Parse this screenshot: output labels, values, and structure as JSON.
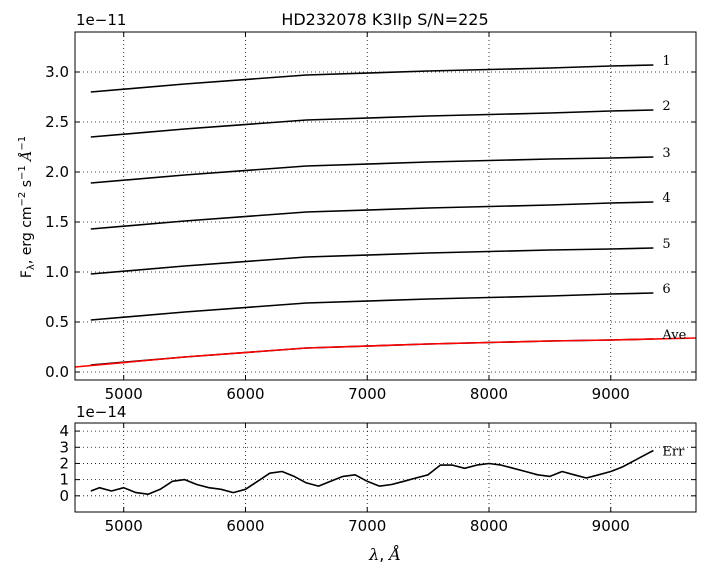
{
  "chart_data": [
    {
      "type": "line",
      "title": "HD232078  K3IIp  S/N=225",
      "ylabel_main": "F",
      "ylabel_sub": "λ",
      "ylabel_rest": ", erg cm",
      "ylabel_exp1": "−2",
      "ylabel_s": " s",
      "ylabel_exp2": "−1",
      "ylabel_unit": "Å",
      "ylabel_exp3": "−1",
      "offset_text": "1e−11",
      "xlim": [
        4600,
        9700
      ],
      "ylim": [
        -0.08,
        3.4
      ],
      "x_ticks": [
        5000,
        6000,
        7000,
        8000,
        9000
      ],
      "x_tick_labels": [
        "5000",
        "6000",
        "7000",
        "8000",
        "9000"
      ],
      "y_ticks": [
        0.0,
        0.5,
        1.0,
        1.5,
        2.0,
        2.5,
        3.0
      ],
      "y_tick_labels": [
        "0.0",
        "0.5",
        "1.0",
        "1.5",
        "2.0",
        "2.5",
        "3.0"
      ],
      "grid": true,
      "series": [
        {
          "name": "1",
          "color": "#000000",
          "x": [
            4730,
            5500,
            6500,
            7500,
            8500,
            9000,
            9350
          ],
          "y": [
            2.8,
            2.88,
            2.97,
            3.01,
            3.04,
            3.06,
            3.07
          ]
        },
        {
          "name": "2",
          "color": "#000000",
          "x": [
            4730,
            5500,
            6500,
            7500,
            8500,
            9000,
            9350
          ],
          "y": [
            2.35,
            2.43,
            2.52,
            2.56,
            2.59,
            2.61,
            2.62
          ]
        },
        {
          "name": "3",
          "color": "#000000",
          "x": [
            4730,
            5500,
            6500,
            7500,
            8500,
            9000,
            9350
          ],
          "y": [
            1.89,
            1.97,
            2.06,
            2.1,
            2.13,
            2.14,
            2.15
          ]
        },
        {
          "name": "4",
          "color": "#000000",
          "x": [
            4730,
            5500,
            6500,
            7500,
            8500,
            9000,
            9350
          ],
          "y": [
            1.43,
            1.51,
            1.6,
            1.64,
            1.67,
            1.69,
            1.7
          ]
        },
        {
          "name": "5",
          "color": "#000000",
          "x": [
            4730,
            5500,
            6500,
            7500,
            8500,
            9000,
            9350
          ],
          "y": [
            0.98,
            1.06,
            1.15,
            1.19,
            1.22,
            1.23,
            1.24
          ]
        },
        {
          "name": "6",
          "color": "#000000",
          "x": [
            4730,
            5500,
            6500,
            7500,
            8500,
            9000,
            9350
          ],
          "y": [
            0.52,
            0.6,
            0.69,
            0.73,
            0.76,
            0.78,
            0.79
          ]
        },
        {
          "name": "Ave",
          "color": "#000000",
          "x": [
            4730,
            5500,
            6500,
            7500,
            8500,
            9000,
            9350
          ],
          "y": [
            0.07,
            0.15,
            0.24,
            0.28,
            0.31,
            0.32,
            0.33
          ]
        },
        {
          "name": "",
          "color": "#ff0000",
          "x": [
            4600,
            5500,
            6500,
            7500,
            8500,
            9000,
            9700
          ],
          "y": [
            0.05,
            0.15,
            0.24,
            0.28,
            0.31,
            0.32,
            0.34
          ]
        }
      ]
    },
    {
      "type": "line",
      "xlabel_main": "λ",
      "xlabel_rest": ", ",
      "xlabel_unit": "Å",
      "offset_text": "1e−14",
      "xlim": [
        4600,
        9700
      ],
      "ylim": [
        -1.0,
        4.5
      ],
      "x_ticks": [
        5000,
        6000,
        7000,
        8000,
        9000
      ],
      "x_tick_labels": [
        "5000",
        "6000",
        "7000",
        "8000",
        "9000"
      ],
      "y_ticks": [
        0,
        1,
        2,
        3,
        4
      ],
      "y_tick_labels": [
        "0",
        "1",
        "2",
        "3",
        "4"
      ],
      "grid": true,
      "series": [
        {
          "name": "Err",
          "color": "#000000",
          "x": [
            4730,
            4800,
            4900,
            5000,
            5100,
            5200,
            5300,
            5400,
            5500,
            5600,
            5700,
            5800,
            5900,
            6000,
            6100,
            6200,
            6300,
            6400,
            6500,
            6600,
            6700,
            6800,
            6900,
            7000,
            7100,
            7200,
            7300,
            7400,
            7500,
            7600,
            7700,
            7800,
            7900,
            8000,
            8100,
            8200,
            8300,
            8400,
            8500,
            8600,
            8700,
            8800,
            8900,
            9000,
            9100,
            9200,
            9300,
            9350
          ],
          "y": [
            0.3,
            0.5,
            0.3,
            0.5,
            0.2,
            0.1,
            0.4,
            0.9,
            1.0,
            0.7,
            0.5,
            0.4,
            0.2,
            0.4,
            0.9,
            1.4,
            1.5,
            1.2,
            0.8,
            0.6,
            0.9,
            1.2,
            1.3,
            0.9,
            0.6,
            0.7,
            0.9,
            1.1,
            1.3,
            1.9,
            1.9,
            1.7,
            1.9,
            2.0,
            1.9,
            1.7,
            1.5,
            1.3,
            1.2,
            1.5,
            1.3,
            1.1,
            1.3,
            1.5,
            1.8,
            2.2,
            2.6,
            2.8
          ]
        }
      ]
    }
  ]
}
